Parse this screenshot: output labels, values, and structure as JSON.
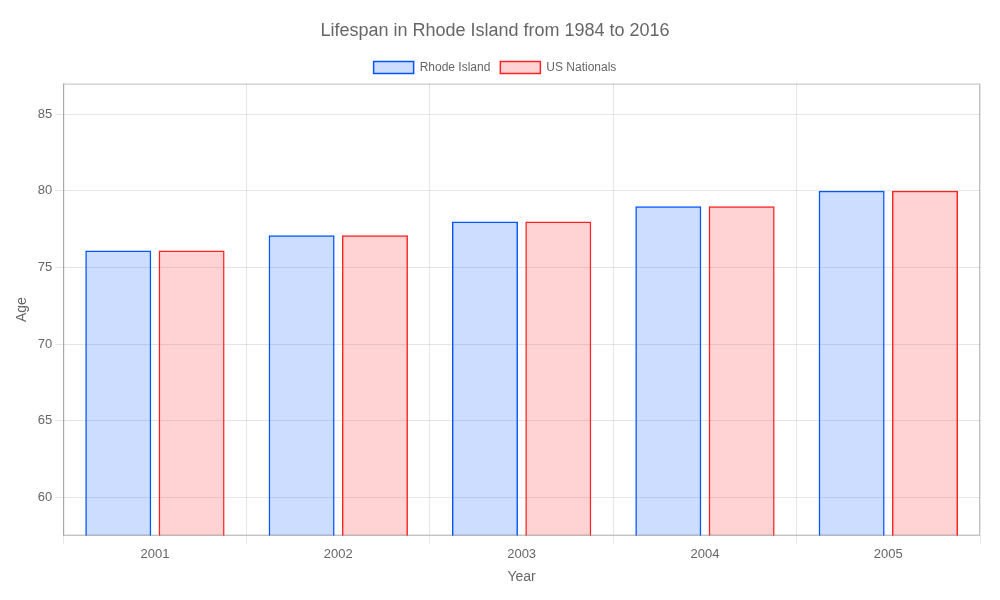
{
  "chart_data": {
    "type": "bar",
    "title": "Lifespan in Rhode Island from 1984 to 2016",
    "x_label": "Year",
    "y_label": "Age",
    "categories": [
      "2001",
      "2002",
      "2003",
      "2004",
      "2005"
    ],
    "series": [
      {
        "name": "Rhode Island",
        "color": "#0055ff",
        "values": [
          76.1,
          77.1,
          78.0,
          79.0,
          80.0
        ]
      },
      {
        "name": "US Nationals",
        "color": "#ff2222",
        "values": [
          76.1,
          77.1,
          78.0,
          79.0,
          80.0
        ]
      }
    ],
    "ylim": [
      57.5,
      87
    ],
    "yticks": [
      60,
      65,
      70,
      75,
      80,
      85
    ],
    "grid": true,
    "legend": "top"
  }
}
